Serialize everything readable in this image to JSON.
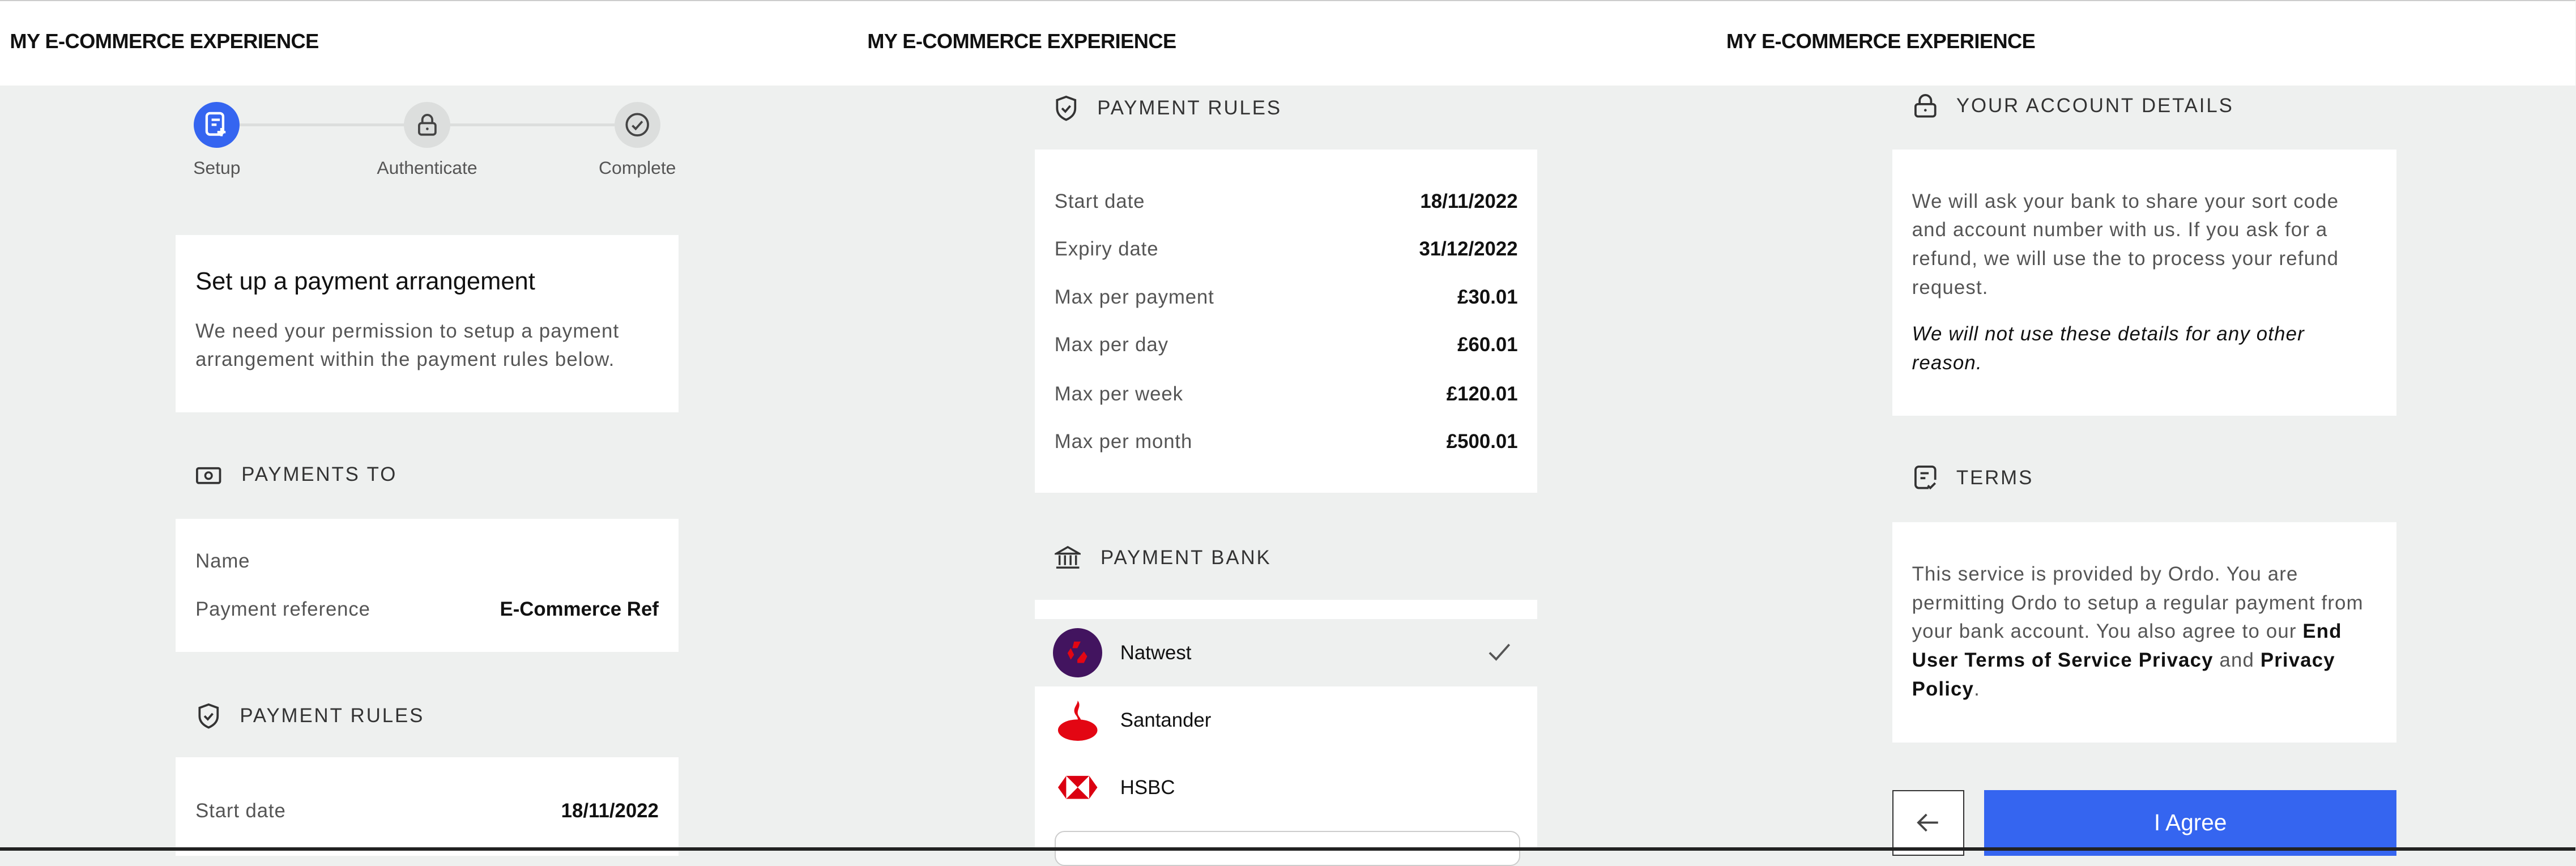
{
  "app_title": "MY E-COMMERCE EXPERIENCE",
  "colors": {
    "accent": "#3565f0",
    "background": "#eef0ef",
    "natwest": "#42145f",
    "bank_red": "#e30613"
  },
  "stepper": [
    {
      "label": "Setup",
      "icon": "document-plus-icon",
      "active": true
    },
    {
      "label": "Authenticate",
      "icon": "lock-icon",
      "active": false
    },
    {
      "label": "Complete",
      "icon": "check-circle-icon",
      "active": false
    }
  ],
  "intro": {
    "title": "Set up a payment arrangement",
    "text": "We need your permission to setup a payment arrangement within the payment rules below."
  },
  "payments_to": {
    "heading": "PAYMENTS TO",
    "rows": [
      {
        "label": "Name",
        "value": ""
      },
      {
        "label": "Payment reference",
        "value": "E-Commerce Ref"
      }
    ]
  },
  "payment_rules": {
    "heading": "PAYMENT RULES",
    "rows": [
      {
        "label": "Start date",
        "value": "18/11/2022"
      },
      {
        "label": "Expiry date",
        "value": "31/12/2022"
      },
      {
        "label": "Max per payment",
        "value": "£30.01"
      },
      {
        "label": "Max per day",
        "value": "£60.01"
      },
      {
        "label": "Max per week",
        "value": "£120.01"
      },
      {
        "label": "Max per month",
        "value": "£500.01"
      }
    ]
  },
  "payment_bank": {
    "heading": "PAYMENT BANK",
    "banks": [
      {
        "name": "Natwest",
        "selected": true
      },
      {
        "name": "Santander",
        "selected": false
      },
      {
        "name": "HSBC",
        "selected": false
      }
    ]
  },
  "account_details": {
    "heading": "YOUR ACCOUNT DETAILS",
    "text": "We will ask your bank to share your sort code and account number with us. If you ask for a refund, we will use the to process your refund request.",
    "note": "We will not use these details for any other reason."
  },
  "terms": {
    "heading": "TERMS",
    "text": "This service is provided by Ordo. You are permitting Ordo to setup a regular payment from your bank account. You also agree to our ",
    "link1": "End User Terms of Service Privacy",
    "and": " and ",
    "link2": "Privacy Policy",
    "end": "."
  },
  "actions": {
    "back_icon": "arrow-left-icon",
    "agree": "I Agree"
  }
}
